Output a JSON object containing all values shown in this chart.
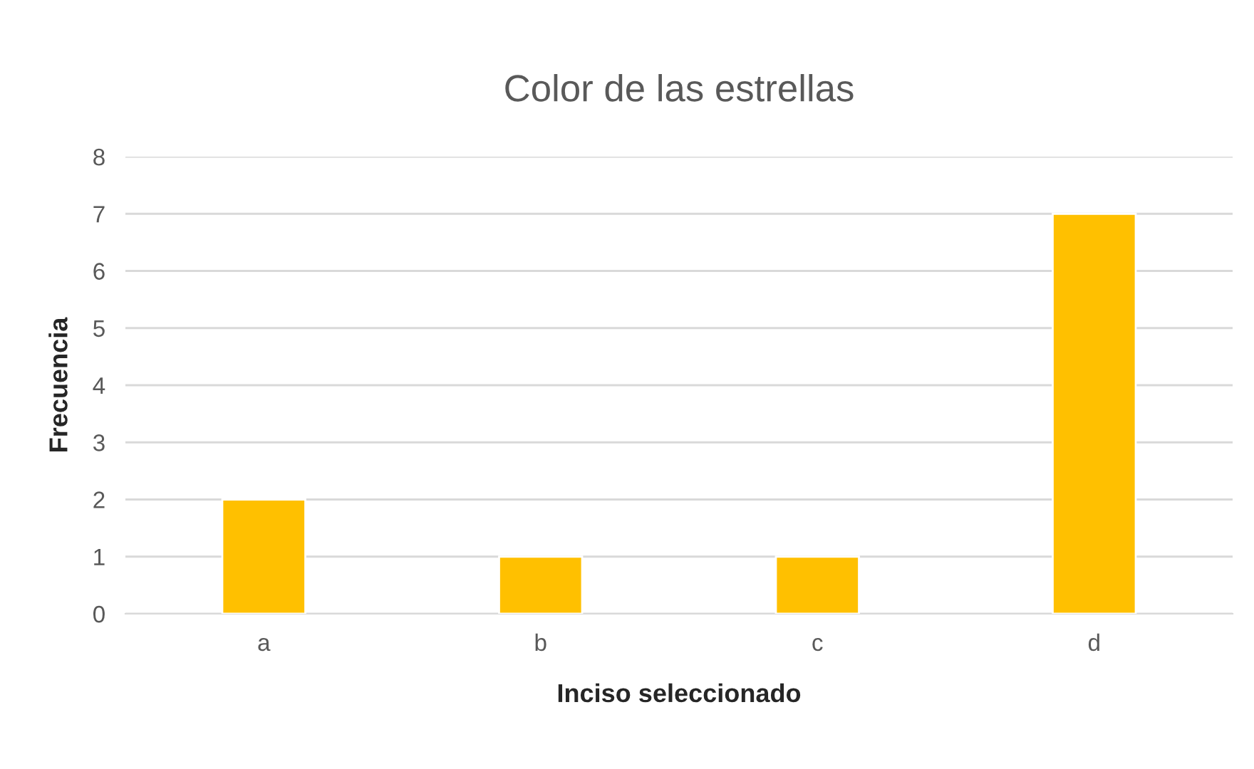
{
  "chart_data": {
    "type": "bar",
    "title": "Color de las estrellas",
    "xlabel": "Inciso seleccionado",
    "ylabel": "Frecuencia",
    "categories": [
      "a",
      "b",
      "c",
      "d"
    ],
    "values": [
      2,
      1,
      1,
      7
    ],
    "color": "#ffc000",
    "ylim": [
      0,
      8
    ],
    "yticks": [
      0,
      1,
      2,
      3,
      4,
      5,
      6,
      7,
      8
    ],
    "grid": "y",
    "legend": false
  }
}
